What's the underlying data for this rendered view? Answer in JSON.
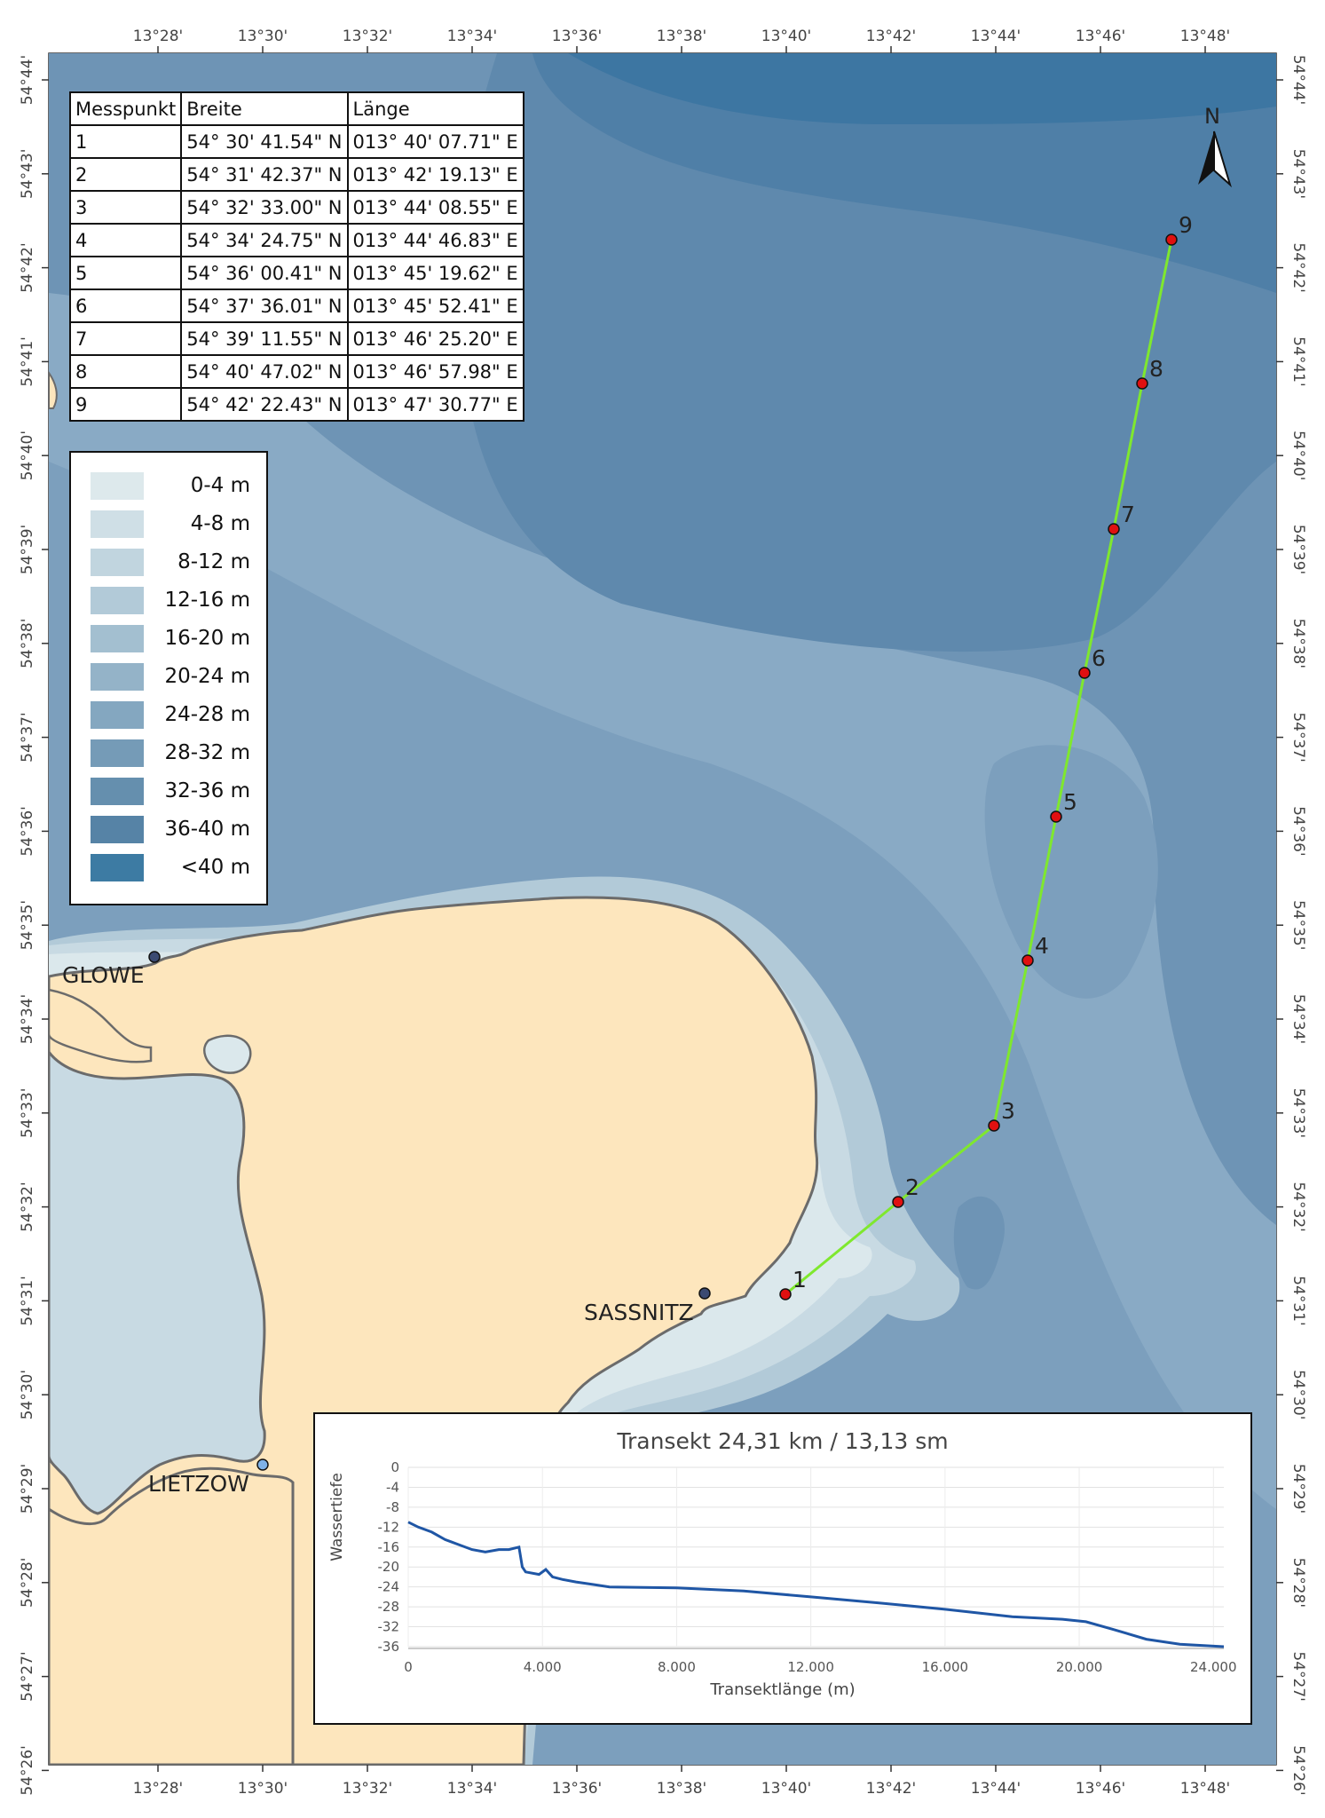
{
  "map": {
    "top_ticks": [
      "13°28'",
      "13°30'",
      "13°32'",
      "13°34'",
      "13°36'",
      "13°38'",
      "13°40'",
      "13°42'",
      "13°44'",
      "13°46'",
      "13°48'"
    ],
    "bottom_ticks": [
      "13°28'",
      "13°30'",
      "13°32'",
      "13°34'",
      "13°36'",
      "13°38'",
      "13°40'",
      "13°42'",
      "13°44'",
      "13°46'",
      "13°48'"
    ],
    "left_ticks": [
      "54°44'",
      "54°43'",
      "54°42'",
      "54°41'",
      "54°40'",
      "54°39'",
      "54°38'",
      "54°37'",
      "54°36'",
      "54°35'",
      "54°34'",
      "54°33'",
      "54°32'",
      "54°31'",
      "54°30'",
      "54°29'",
      "54°28'",
      "54°27'",
      "54°26'"
    ],
    "right_ticks": [
      "54°44'",
      "54°43'",
      "54°42'",
      "54°41'",
      "54°40'",
      "54°39'",
      "54°38'",
      "54°37'",
      "54°36'",
      "54°35'",
      "54°34'",
      "54°33'",
      "54°32'",
      "54°31'",
      "54°30'",
      "54°29'",
      "54°28'",
      "54°27'",
      "54°26'"
    ],
    "north_label": "N",
    "places": [
      "GLOWE",
      "SASSNITZ",
      "LIETZOW"
    ],
    "transect_color": "#7fe82e",
    "point_color": "#e01010",
    "land_color": "#fde6bd",
    "colors": {
      "deep": "#3d7ba3",
      "shallow": "#dbe8ec"
    }
  },
  "table": {
    "headers": [
      "Messpunkt",
      "Breite",
      "Länge"
    ],
    "rows": [
      [
        "1",
        "54° 30' 41.54\" N",
        "013° 40' 07.71\" E"
      ],
      [
        "2",
        "54° 31' 42.37\" N",
        "013° 42' 19.13\" E"
      ],
      [
        "3",
        "54° 32' 33.00\" N",
        "013° 44' 08.55\" E"
      ],
      [
        "4",
        "54° 34' 24.75\" N",
        "013° 44' 46.83\" E"
      ],
      [
        "5",
        "54° 36' 00.41\" N",
        "013° 45' 19.62\" E"
      ],
      [
        "6",
        "54° 37' 36.01\" N",
        "013° 45' 52.41\" E"
      ],
      [
        "7",
        "54° 39' 11.55\" N",
        "013° 46' 25.20\" E"
      ],
      [
        "8",
        "54° 40' 47.02\" N",
        "013° 46' 57.98\" E"
      ],
      [
        "9",
        "54° 42' 22.43\" N",
        "013° 47' 30.77\" E"
      ]
    ]
  },
  "legend": [
    {
      "label": "0-4 m",
      "color": "#dde9ec"
    },
    {
      "label": "4-8 m",
      "color": "#cfdfe6"
    },
    {
      "label": "8-12 m",
      "color": "#c1d5df"
    },
    {
      "label": "12-16 m",
      "color": "#b2cad8"
    },
    {
      "label": "16-20 m",
      "color": "#a3bfd0"
    },
    {
      "label": "20-24 m",
      "color": "#94b3c8"
    },
    {
      "label": "24-28 m",
      "color": "#84a7c0"
    },
    {
      "label": "28-32 m",
      "color": "#759bb7"
    },
    {
      "label": "32-36 m",
      "color": "#658fae"
    },
    {
      "label": "36-40 m",
      "color": "#5683a6"
    },
    {
      "label": "<40 m",
      "color": "#3d7ba3"
    }
  ],
  "chart_data": {
    "type": "line",
    "title": "Transekt 24,31 km / 13,13 sm",
    "xlabel": "Transektlänge (m)",
    "ylabel": "Wassertiefe",
    "xlim": [
      0,
      24310
    ],
    "ylim": [
      -36,
      0
    ],
    "x_ticks": [
      "0",
      "4.000",
      "8.000",
      "12.000",
      "16.000",
      "20.000",
      "24.000"
    ],
    "y_ticks": [
      "0",
      "-4",
      "-8",
      "-12",
      "-16",
      "-20",
      "-24",
      "-28",
      "-32",
      "-36"
    ],
    "grid": true,
    "color": "#1f56a5",
    "series": [
      {
        "x": [
          0,
          300,
          700,
          1100,
          1500,
          1900,
          2300,
          2700,
          3000,
          3300,
          3400,
          3500,
          3900,
          4100,
          4300,
          4600,
          5000,
          5500,
          6000,
          8000,
          10000,
          12000,
          14000,
          16000,
          18000,
          19500,
          20200,
          21000,
          22000,
          23000,
          24310
        ],
        "y": [
          -11,
          -12,
          -13,
          -14.5,
          -15.5,
          -16.5,
          -17,
          -16.5,
          -16.5,
          -16,
          -20,
          -21,
          -21.5,
          -20.5,
          -22,
          -22.5,
          -23,
          -23.5,
          -24,
          -24.2,
          -24.8,
          -26,
          -27.2,
          -28.5,
          -30,
          -30.5,
          -31,
          -32.5,
          -34.5,
          -35.5,
          -36
        ]
      }
    ]
  }
}
